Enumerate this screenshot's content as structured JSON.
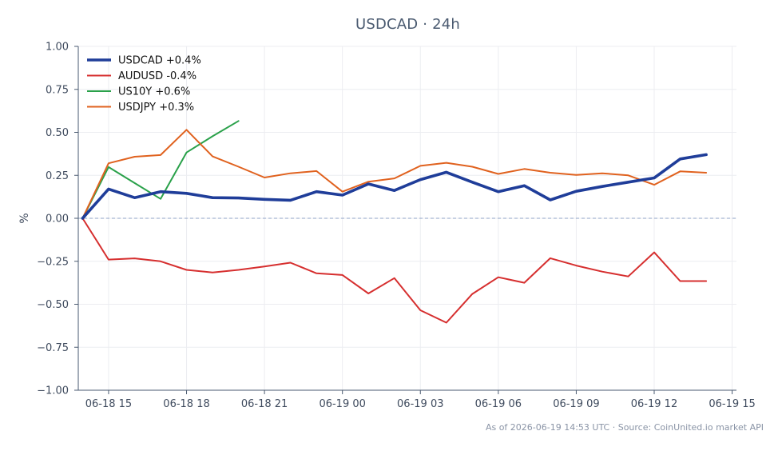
{
  "chart_data": {
    "type": "line",
    "title": "USDCAD · 24h",
    "ylabel": "%",
    "xlabel": "",
    "ylim": [
      -1.0,
      1.0
    ],
    "yticks": [
      1.0,
      0.75,
      0.5,
      0.25,
      0.0,
      -0.25,
      -0.5,
      -0.75,
      -1.0
    ],
    "ytick_labels": [
      "1.00",
      "0.75",
      "0.50",
      "0.25",
      "0.00",
      "−0.25",
      "−0.50",
      "−0.75",
      "−1.00"
    ],
    "xlim": [
      "2026-06-18 13:50",
      "2026-06-19 15:10"
    ],
    "xticks": [
      "2026-06-18 15:00",
      "2026-06-18 18:00",
      "2026-06-18 21:00",
      "2026-06-19 00:00",
      "2026-06-19 03:00",
      "2026-06-19 06:00",
      "2026-06-19 09:00",
      "2026-06-19 12:00",
      "2026-06-19 15:00"
    ],
    "xtick_labels": [
      "06-18 15",
      "06-18 18",
      "06-18 21",
      "06-19 00",
      "06-19 03",
      "06-19 06",
      "06-19 09",
      "06-19 12",
      "06-19 15"
    ],
    "x": [
      "2026-06-18 14:00",
      "2026-06-18 15:00",
      "2026-06-18 16:00",
      "2026-06-18 17:00",
      "2026-06-18 18:00",
      "2026-06-18 19:00",
      "2026-06-18 20:00",
      "2026-06-18 21:00",
      "2026-06-18 22:00",
      "2026-06-18 23:00",
      "2026-06-19 00:00",
      "2026-06-19 01:00",
      "2026-06-19 02:00",
      "2026-06-19 03:00",
      "2026-06-19 04:00",
      "2026-06-19 05:00",
      "2026-06-19 06:00",
      "2026-06-19 07:00",
      "2026-06-19 08:00",
      "2026-06-19 09:00",
      "2026-06-19 10:00",
      "2026-06-19 11:00",
      "2026-06-19 12:00",
      "2026-06-19 13:00",
      "2026-06-19 14:00"
    ],
    "grid": true,
    "reference_line": 0.0,
    "legend_position": "top-left",
    "series": [
      {
        "name": "USDCAD +0.4%",
        "color": "#1f3d99",
        "bold": true,
        "values": [
          0.0,
          0.17,
          0.12,
          0.155,
          0.145,
          0.12,
          0.118,
          0.11,
          0.105,
          0.155,
          0.135,
          0.2,
          0.162,
          0.225,
          0.268,
          0.21,
          0.155,
          0.19,
          0.107,
          0.157,
          0.185,
          0.21,
          0.235,
          0.345,
          0.37
        ]
      },
      {
        "name": "AUDUSD -0.4%",
        "color": "#d62f2f",
        "bold": false,
        "values": [
          0.0,
          -0.24,
          -0.233,
          -0.25,
          -0.3,
          -0.315,
          -0.3,
          -0.28,
          -0.258,
          -0.32,
          -0.33,
          -0.437,
          -0.348,
          -0.535,
          -0.607,
          -0.44,
          -0.343,
          -0.375,
          -0.232,
          -0.275,
          -0.31,
          -0.338,
          -0.198,
          -0.365,
          -0.365
        ]
      },
      {
        "name": "US10Y +0.6%",
        "color": "#2aa14a",
        "bold": false,
        "values": [
          0.0,
          0.298,
          0.205,
          0.113,
          0.383,
          0.477,
          0.566,
          null,
          null,
          null,
          null,
          null,
          null,
          null,
          null,
          null,
          null,
          null,
          null,
          null,
          null,
          null,
          null,
          null,
          null
        ]
      },
      {
        "name": "USDJPY +0.3%",
        "color": "#e0621f",
        "bold": false,
        "values": [
          0.0,
          0.32,
          0.358,
          0.368,
          0.515,
          0.36,
          0.3,
          0.237,
          0.262,
          0.275,
          0.155,
          0.213,
          0.232,
          0.305,
          0.323,
          0.3,
          0.258,
          0.287,
          0.265,
          0.252,
          0.262,
          0.25,
          0.195,
          0.273,
          0.265
        ]
      }
    ],
    "footer": "As of 2026-06-19 14:53 UTC · Source: CoinUnited.io market API"
  }
}
